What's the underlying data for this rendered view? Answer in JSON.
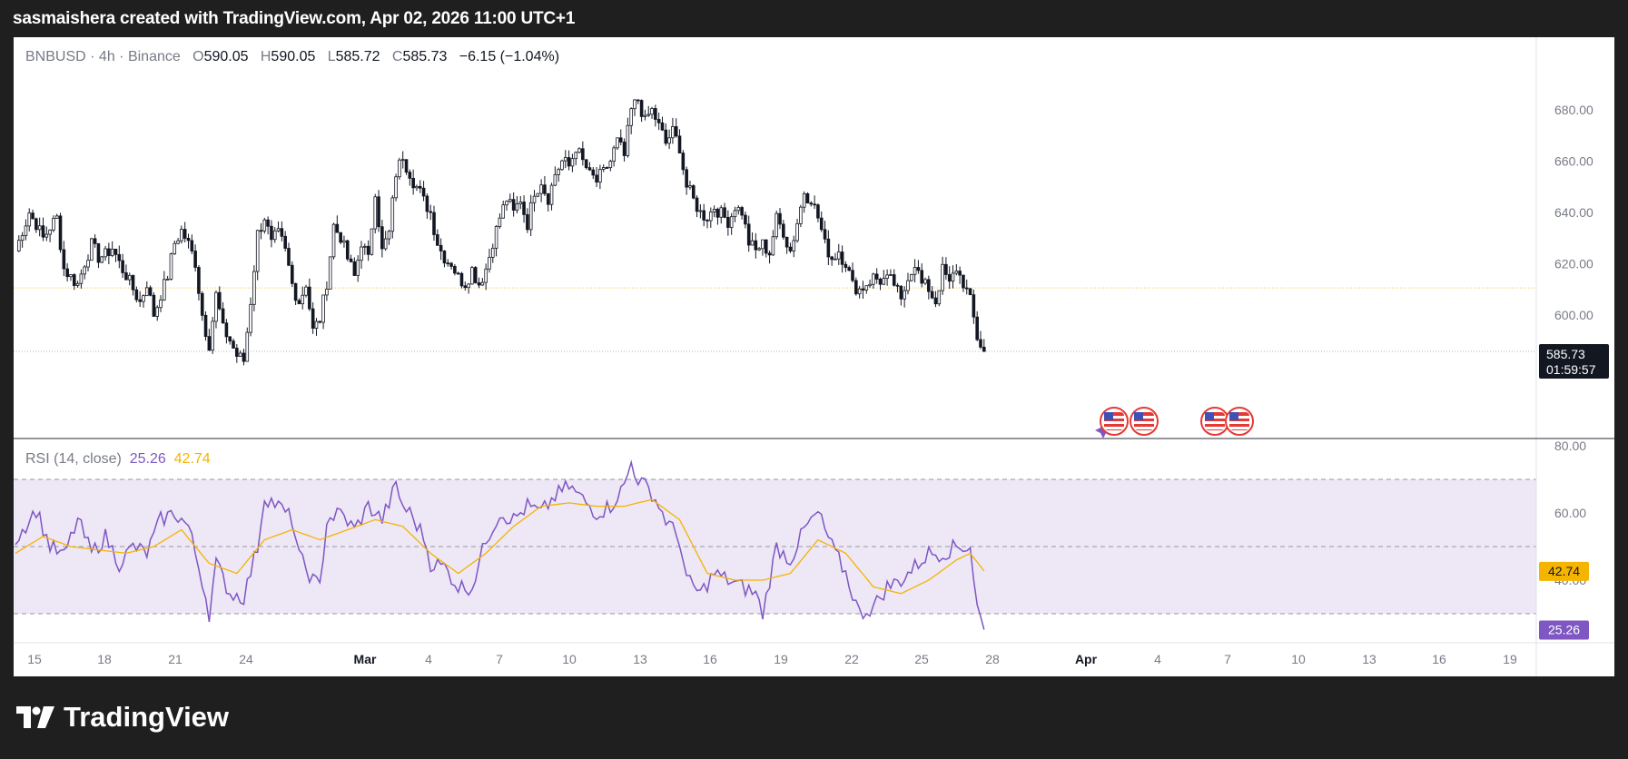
{
  "header": {
    "text": "sasmaishera created with TradingView.com, Apr 02, 2026 11:00 UTC+1"
  },
  "legend": {
    "symbol": "BNBUSD",
    "sep1": "·",
    "interval": "4h",
    "sep2": "·",
    "exchange": "Binance",
    "o_label": "O",
    "o_value": "590.05",
    "h_label": "H",
    "h_value": "590.05",
    "l_label": "L",
    "l_value": "585.72",
    "c_label": "C",
    "c_value": "585.73",
    "change": "−6.15 (−1.04%)"
  },
  "rsi_legend": {
    "name": "RSI (14, close)",
    "rsi_value": "25.26",
    "ma_value": "42.74"
  },
  "brand": {
    "name": "TradingView"
  },
  "colors": {
    "background": "#1f1f1f",
    "candle": "#131722",
    "rsi": "#7e57c2",
    "rsi_ma": "#f5b400",
    "rsi_band": "#ede7f6",
    "price_line": "#f5b400"
  },
  "chart_data": [
    {
      "type": "candlestick",
      "symbol": "BNBUSD",
      "interval": "4h",
      "exchange": "Binance",
      "y_ticks": [
        "600.00",
        "620.00",
        "640.00",
        "660.00",
        "680.00"
      ],
      "ylim": [
        568,
        690
      ],
      "x_ticks": [
        "15",
        "18",
        "21",
        "24",
        "Mar",
        "4",
        "7",
        "10",
        "13",
        "16",
        "19",
        "22",
        "25",
        "28",
        "Apr",
        "4",
        "7",
        "10",
        "13",
        "16",
        "19"
      ],
      "last_price": "585.73",
      "countdown": "01:59:57",
      "reference_level": 610.5,
      "close_path": [
        [
          0,
          625
        ],
        [
          2,
          640
        ],
        [
          4,
          630
        ],
        [
          6,
          638
        ],
        [
          7,
          618
        ],
        [
          9,
          612
        ],
        [
          11,
          628
        ],
        [
          12,
          622
        ],
        [
          14,
          626
        ],
        [
          16,
          615
        ],
        [
          18,
          605
        ],
        [
          19,
          612
        ],
        [
          20,
          600
        ],
        [
          22,
          615
        ],
        [
          23,
          628
        ],
        [
          24,
          633
        ],
        [
          25,
          628
        ],
        [
          26,
          620
        ],
        [
          27,
          600
        ],
        [
          28,
          588
        ],
        [
          29,
          608
        ],
        [
          30,
          595
        ],
        [
          31,
          590
        ],
        [
          32,
          584
        ],
        [
          33,
          582
        ],
        [
          34,
          605
        ],
        [
          35,
          632
        ],
        [
          36,
          638
        ],
        [
          37,
          628
        ],
        [
          38,
          632
        ],
        [
          39,
          625
        ],
        [
          40,
          612
        ],
        [
          41,
          605
        ],
        [
          42,
          612
        ],
        [
          43,
          594
        ],
        [
          44,
          598
        ],
        [
          45,
          612
        ],
        [
          46,
          635
        ],
        [
          47,
          630
        ],
        [
          48,
          622
        ],
        [
          49,
          615
        ],
        [
          50,
          628
        ],
        [
          51,
          622
        ],
        [
          52,
          648
        ],
        [
          53,
          625
        ],
        [
          54,
          632
        ],
        [
          55,
          655
        ],
        [
          56,
          662
        ],
        [
          57,
          655
        ],
        [
          58,
          650
        ],
        [
          59,
          645
        ],
        [
          60,
          640
        ],
        [
          61,
          628
        ],
        [
          62,
          622
        ],
        [
          63,
          620
        ],
        [
          64,
          615
        ],
        [
          65,
          612
        ],
        [
          66,
          618
        ],
        [
          67,
          612
        ],
        [
          68,
          618
        ],
        [
          69,
          628
        ],
        [
          70,
          638
        ],
        [
          71,
          645
        ],
        [
          72,
          640
        ],
        [
          73,
          645
        ],
        [
          74,
          635
        ],
        [
          75,
          648
        ],
        [
          76,
          652
        ],
        [
          77,
          645
        ],
        [
          78,
          655
        ],
        [
          79,
          660
        ],
        [
          80,
          658
        ],
        [
          81,
          665
        ],
        [
          82,
          660
        ],
        [
          83,
          655
        ],
        [
          84,
          652
        ],
        [
          85,
          656
        ],
        [
          86,
          660
        ],
        [
          87,
          668
        ],
        [
          88,
          662
        ],
        [
          89,
          680
        ],
        [
          90,
          684
        ],
        [
          91,
          676
        ],
        [
          92,
          680
        ],
        [
          93,
          674
        ],
        [
          94,
          667
        ],
        [
          95,
          672
        ],
        [
          96,
          665
        ],
        [
          97,
          650
        ],
        [
          98,
          645
        ],
        [
          99,
          640
        ],
        [
          100,
          638
        ],
        [
          101,
          642
        ],
        [
          102,
          640
        ],
        [
          103,
          636
        ],
        [
          104,
          642
        ],
        [
          105,
          640
        ],
        [
          106,
          628
        ],
        [
          107,
          625
        ],
        [
          108,
          628
        ],
        [
          109,
          624
        ],
        [
          110,
          638
        ],
        [
          111,
          632
        ],
        [
          112,
          625
        ],
        [
          113,
          636
        ],
        [
          114,
          648
        ],
        [
          115,
          645
        ],
        [
          116,
          638
        ],
        [
          117,
          628
        ],
        [
          118,
          622
        ],
        [
          119,
          625
        ],
        [
          120,
          620
        ],
        [
          121,
          612
        ],
        [
          122,
          610
        ],
        [
          123,
          612
        ],
        [
          124,
          615
        ],
        [
          125,
          613
        ],
        [
          126,
          614
        ],
        [
          127,
          612
        ],
        [
          128,
          605
        ],
        [
          129,
          615
        ],
        [
          130,
          620
        ],
        [
          131,
          612
        ],
        [
          132,
          610
        ],
        [
          133,
          605
        ],
        [
          134,
          618
        ],
        [
          135,
          612
        ],
        [
          136,
          618
        ],
        [
          137,
          612
        ],
        [
          138,
          606
        ],
        [
          139,
          591
        ],
        [
          140,
          585.73
        ]
      ]
    },
    {
      "type": "line",
      "title": "RSI (14, close)",
      "y_ticks": [
        "40.00",
        "60.00",
        "80.00"
      ],
      "ylim": [
        20,
        80
      ],
      "bands": [
        30,
        50,
        70
      ],
      "series": [
        {
          "name": "RSI",
          "last": 25.26,
          "path": [
            [
              0,
              52
            ],
            [
              3,
              61
            ],
            [
              5,
              50
            ],
            [
              7,
              47
            ],
            [
              9,
              58
            ],
            [
              11,
              48
            ],
            [
              13,
              53
            ],
            [
              15,
              45
            ],
            [
              17,
              50
            ],
            [
              19,
              48
            ],
            [
              21,
              58
            ],
            [
              23,
              60
            ],
            [
              25,
              56
            ],
            [
              27,
              40
            ],
            [
              28,
              30
            ],
            [
              29,
              45
            ],
            [
              31,
              36
            ],
            [
              33,
              35
            ],
            [
              35,
              50
            ],
            [
              36,
              65
            ],
            [
              38,
              62
            ],
            [
              40,
              58
            ],
            [
              41,
              47
            ],
            [
              43,
              40
            ],
            [
              44,
              38
            ],
            [
              45,
              58
            ],
            [
              47,
              60
            ],
            [
              49,
              55
            ],
            [
              51,
              62
            ],
            [
              53,
              58
            ],
            [
              55,
              68
            ],
            [
              56,
              62
            ],
            [
              57,
              60
            ],
            [
              59,
              53
            ],
            [
              60,
              45
            ],
            [
              62,
              44
            ],
            [
              64,
              38
            ],
            [
              66,
              38
            ],
            [
              68,
              52
            ],
            [
              70,
              60
            ],
            [
              72,
              58
            ],
            [
              74,
              62
            ],
            [
              76,
              60
            ],
            [
              78,
              65
            ],
            [
              80,
              68
            ],
            [
              82,
              64
            ],
            [
              84,
              60
            ],
            [
              86,
              62
            ],
            [
              88,
              68
            ],
            [
              89,
              75
            ],
            [
              90,
              70
            ],
            [
              92,
              66
            ],
            [
              94,
              58
            ],
            [
              96,
              52
            ],
            [
              97,
              40
            ],
            [
              99,
              36
            ],
            [
              101,
              42
            ],
            [
              103,
              40
            ],
            [
              105,
              38
            ],
            [
              107,
              36
            ],
            [
              108,
              30
            ],
            [
              110,
              50
            ],
            [
              112,
              46
            ],
            [
              114,
              55
            ],
            [
              116,
              60
            ],
            [
              118,
              50
            ],
            [
              120,
              42
            ],
            [
              122,
              30
            ],
            [
              124,
              32
            ],
            [
              126,
              38
            ],
            [
              128,
              40
            ],
            [
              130,
              44
            ],
            [
              132,
              48
            ],
            [
              134,
              48
            ],
            [
              136,
              50
            ],
            [
              138,
              50
            ],
            [
              139,
              32
            ],
            [
              140,
              25.26
            ]
          ]
        },
        {
          "name": "RSI-based MA",
          "last": 42.74,
          "path": [
            [
              0,
              48
            ],
            [
              4,
              53
            ],
            [
              8,
              50
            ],
            [
              12,
              49
            ],
            [
              16,
              48
            ],
            [
              20,
              50
            ],
            [
              24,
              55
            ],
            [
              28,
              45
            ],
            [
              32,
              42
            ],
            [
              36,
              52
            ],
            [
              40,
              55
            ],
            [
              44,
              52
            ],
            [
              48,
              55
            ],
            [
              52,
              58
            ],
            [
              56,
              56
            ],
            [
              60,
              48
            ],
            [
              64,
              42
            ],
            [
              68,
              48
            ],
            [
              72,
              56
            ],
            [
              76,
              62
            ],
            [
              80,
              63
            ],
            [
              84,
              62
            ],
            [
              88,
              62
            ],
            [
              92,
              64
            ],
            [
              96,
              58
            ],
            [
              100,
              42
            ],
            [
              104,
              40
            ],
            [
              108,
              40
            ],
            [
              112,
              42
            ],
            [
              116,
              52
            ],
            [
              120,
              48
            ],
            [
              124,
              38
            ],
            [
              128,
              36
            ],
            [
              132,
              40
            ],
            [
              136,
              46
            ],
            [
              138,
              48
            ],
            [
              140,
              42.74
            ]
          ]
        }
      ]
    }
  ]
}
